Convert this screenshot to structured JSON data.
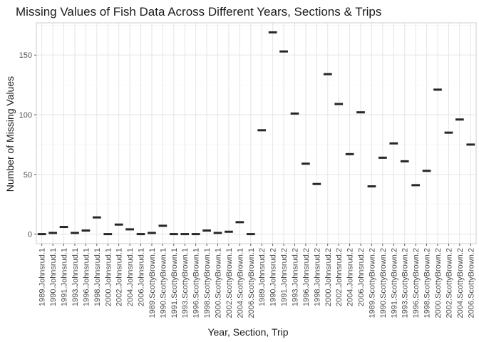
{
  "chart_data": {
    "type": "scatter",
    "title": "Missing Values of Fish Data Across Different Years, Sections & Trips",
    "xlabel": "Year, Section, Trip",
    "ylabel": "Number of Missing Values",
    "ylim": [
      -8,
      177
    ],
    "yticks": [
      0,
      50,
      100,
      150
    ],
    "grid": true,
    "categories": [
      "1989.Johnsrud.1",
      "1990.Johnsrud.1",
      "1991.Johnsrud.1",
      "1993.Johnsrud.1",
      "1996.Johnsrud.1",
      "1998.Johnsrud.1",
      "2000.Johnsrud.1",
      "2002.Johnsrud.1",
      "2004.Johnsrud.1",
      "2006.Johnsrud.1",
      "1989.ScottyBrown.1",
      "1990.ScottyBrown.1",
      "1991.ScottyBrown.1",
      "1993.ScottyBrown.1",
      "1996.ScottyBrown.1",
      "1998.ScottyBrown.1",
      "2000.ScottyBrown.1",
      "2002.ScottyBrown.1",
      "2004.ScottyBrown.1",
      "2006.ScottyBrown.1",
      "1989.Johnsrud.2",
      "1990.Johnsrud.2",
      "1991.Johnsrud.2",
      "1993.Johnsrud.2",
      "1996.Johnsrud.2",
      "1998.Johnsrud.2",
      "2000.Johnsrud.2",
      "2002.Johnsrud.2",
      "2004.Johnsrud.2",
      "2006.Johnsrud.2",
      "1989.ScottyBrown.2",
      "1990.ScottyBrown.2",
      "1991.ScottyBrown.2",
      "1993.ScottyBrown.2",
      "1996.ScottyBrown.2",
      "1998.ScottyBrown.2",
      "2000.ScottyBrown.2",
      "2002.ScottyBrown.2",
      "2004.ScottyBrown.2",
      "2006.ScottyBrown.2"
    ],
    "values": [
      0,
      1,
      6,
      1,
      3,
      14,
      0,
      8,
      4,
      0,
      1,
      7,
      0,
      0,
      0,
      3,
      1,
      2,
      10,
      0,
      87,
      169,
      153,
      101,
      59,
      42,
      134,
      109,
      67,
      102,
      40,
      64,
      76,
      61,
      41,
      53,
      121,
      85,
      96,
      75
    ]
  }
}
